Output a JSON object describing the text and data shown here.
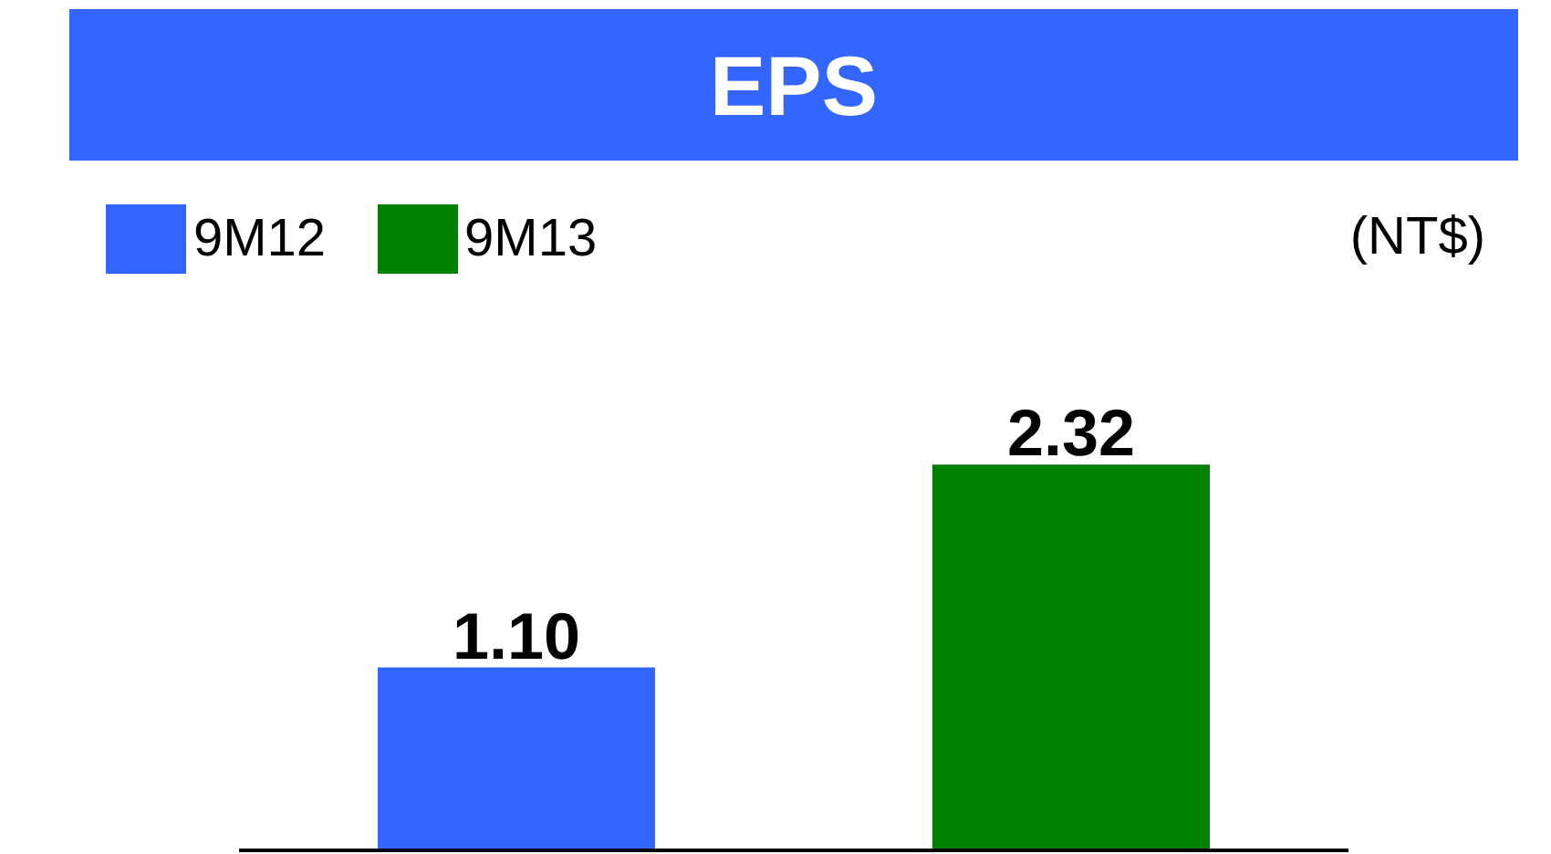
{
  "chart_data": {
    "type": "bar",
    "title": "EPS",
    "annotations": [
      "(NT$)"
    ],
    "categories": [
      null,
      null
    ],
    "stacked": true,
    "series": [
      {
        "name": "9M12",
        "color": "#3366ff",
        "values": [
          1.1,
          null
        ],
        "value_labels": [
          "1.10",
          null
        ]
      },
      {
        "name": "9M13",
        "color": "#008000",
        "values": [
          null,
          2.32
        ],
        "value_labels": [
          null,
          "2.32"
        ]
      }
    ],
    "legend": "top left"
  }
}
